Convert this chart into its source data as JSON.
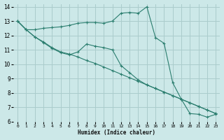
{
  "background_color": "#cce8e8",
  "grid_color": "#aacccc",
  "line_color": "#2a7d6e",
  "xlabel": "Humidex (Indice chaleur)",
  "xlim": [
    -0.5,
    23.5
  ],
  "ylim": [
    6,
    14.2
  ],
  "yticks": [
    6,
    7,
    8,
    9,
    10,
    11,
    12,
    13,
    14
  ],
  "xticks": [
    0,
    1,
    2,
    3,
    4,
    5,
    6,
    7,
    8,
    9,
    10,
    11,
    12,
    13,
    14,
    15,
    16,
    17,
    18,
    19,
    20,
    21,
    22,
    23
  ],
  "series": [
    {
      "x": [
        0,
        1,
        2,
        3,
        4,
        5,
        6,
        7,
        8,
        9,
        10,
        11,
        12,
        13,
        14,
        15,
        16,
        17,
        18,
        19,
        20,
        21,
        22,
        23
      ],
      "y": [
        13.0,
        12.4,
        12.4,
        12.5,
        12.55,
        12.6,
        12.7,
        12.85,
        12.9,
        12.9,
        12.85,
        13.0,
        13.55,
        13.6,
        13.55,
        14.0,
        11.85,
        11.45,
        8.7,
        7.55,
        6.55,
        6.5,
        6.3,
        6.5
      ]
    },
    {
      "x": [
        0,
        1,
        2,
        3,
        4,
        5,
        6,
        7,
        8,
        9,
        10,
        11,
        12,
        13,
        14,
        15,
        16,
        17,
        18,
        19,
        20,
        21,
        22,
        23
      ],
      "y": [
        13.0,
        12.4,
        11.9,
        11.55,
        11.15,
        10.85,
        10.7,
        10.5,
        10.25,
        10.05,
        9.8,
        9.55,
        9.3,
        9.05,
        8.8,
        8.55,
        8.3,
        8.05,
        7.8,
        7.55,
        7.3,
        7.05,
        6.8,
        6.55
      ]
    },
    {
      "x": [
        0,
        1,
        2,
        3,
        4,
        5,
        6,
        7,
        8,
        9,
        10,
        11,
        12,
        13,
        14,
        15,
        16,
        17,
        18,
        19,
        20,
        21,
        22,
        23
      ],
      "y": [
        13.0,
        12.4,
        11.9,
        11.5,
        11.1,
        10.8,
        10.65,
        10.85,
        11.4,
        11.25,
        11.15,
        11.0,
        9.9,
        9.4,
        8.9,
        8.55,
        8.3,
        8.05,
        7.8,
        7.55,
        7.3,
        7.05,
        6.8,
        6.55
      ]
    }
  ]
}
